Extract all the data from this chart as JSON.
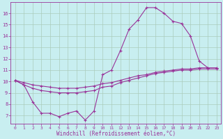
{
  "bg_color": "#c8eef0",
  "grid_color": "#aaccbb",
  "line_color": "#993399",
  "marker": "+",
  "markersize": 3,
  "linewidth": 0.8,
  "xlabel": "Windchill (Refroidissement éolien,°C)",
  "xlim": [
    -0.5,
    23.5
  ],
  "ylim": [
    6.3,
    17.0
  ],
  "xticks": [
    0,
    1,
    2,
    3,
    4,
    5,
    6,
    7,
    8,
    9,
    10,
    11,
    12,
    13,
    14,
    15,
    16,
    17,
    18,
    19,
    20,
    21,
    22,
    23
  ],
  "yticks": [
    7,
    8,
    9,
    10,
    11,
    12,
    13,
    14,
    15,
    16
  ],
  "curve1_x": [
    0,
    1,
    2,
    3,
    4,
    5,
    6,
    7,
    8,
    9,
    10,
    11,
    12,
    13,
    14,
    15,
    16,
    17,
    18,
    19,
    20,
    21,
    22,
    23
  ],
  "curve1_y": [
    10.1,
    9.7,
    8.2,
    7.2,
    7.2,
    6.9,
    7.2,
    7.4,
    6.6,
    7.4,
    10.6,
    11.0,
    12.7,
    14.6,
    15.4,
    16.5,
    16.5,
    16.0,
    15.3,
    15.1,
    14.0,
    11.8,
    11.2,
    11.2
  ],
  "curve2_x": [
    0,
    1,
    2,
    3,
    4,
    5,
    6,
    7,
    8,
    9,
    10,
    11,
    12,
    13,
    14,
    15,
    16,
    17,
    18,
    19,
    20,
    21,
    22,
    23
  ],
  "curve2_y": [
    10.1,
    9.9,
    9.7,
    9.6,
    9.5,
    9.4,
    9.4,
    9.4,
    9.5,
    9.6,
    9.8,
    9.9,
    10.1,
    10.3,
    10.5,
    10.6,
    10.8,
    10.9,
    11.0,
    11.1,
    11.1,
    11.2,
    11.2,
    11.2
  ],
  "curve3_x": [
    0,
    1,
    2,
    3,
    4,
    5,
    6,
    7,
    8,
    9,
    10,
    11,
    12,
    13,
    14,
    15,
    16,
    17,
    18,
    19,
    20,
    21,
    22,
    23
  ],
  "curve3_y": [
    10.1,
    9.7,
    9.4,
    9.2,
    9.1,
    9.0,
    9.0,
    9.0,
    9.1,
    9.2,
    9.5,
    9.6,
    9.9,
    10.1,
    10.3,
    10.5,
    10.7,
    10.8,
    10.9,
    11.0,
    11.0,
    11.1,
    11.1,
    11.1
  ]
}
